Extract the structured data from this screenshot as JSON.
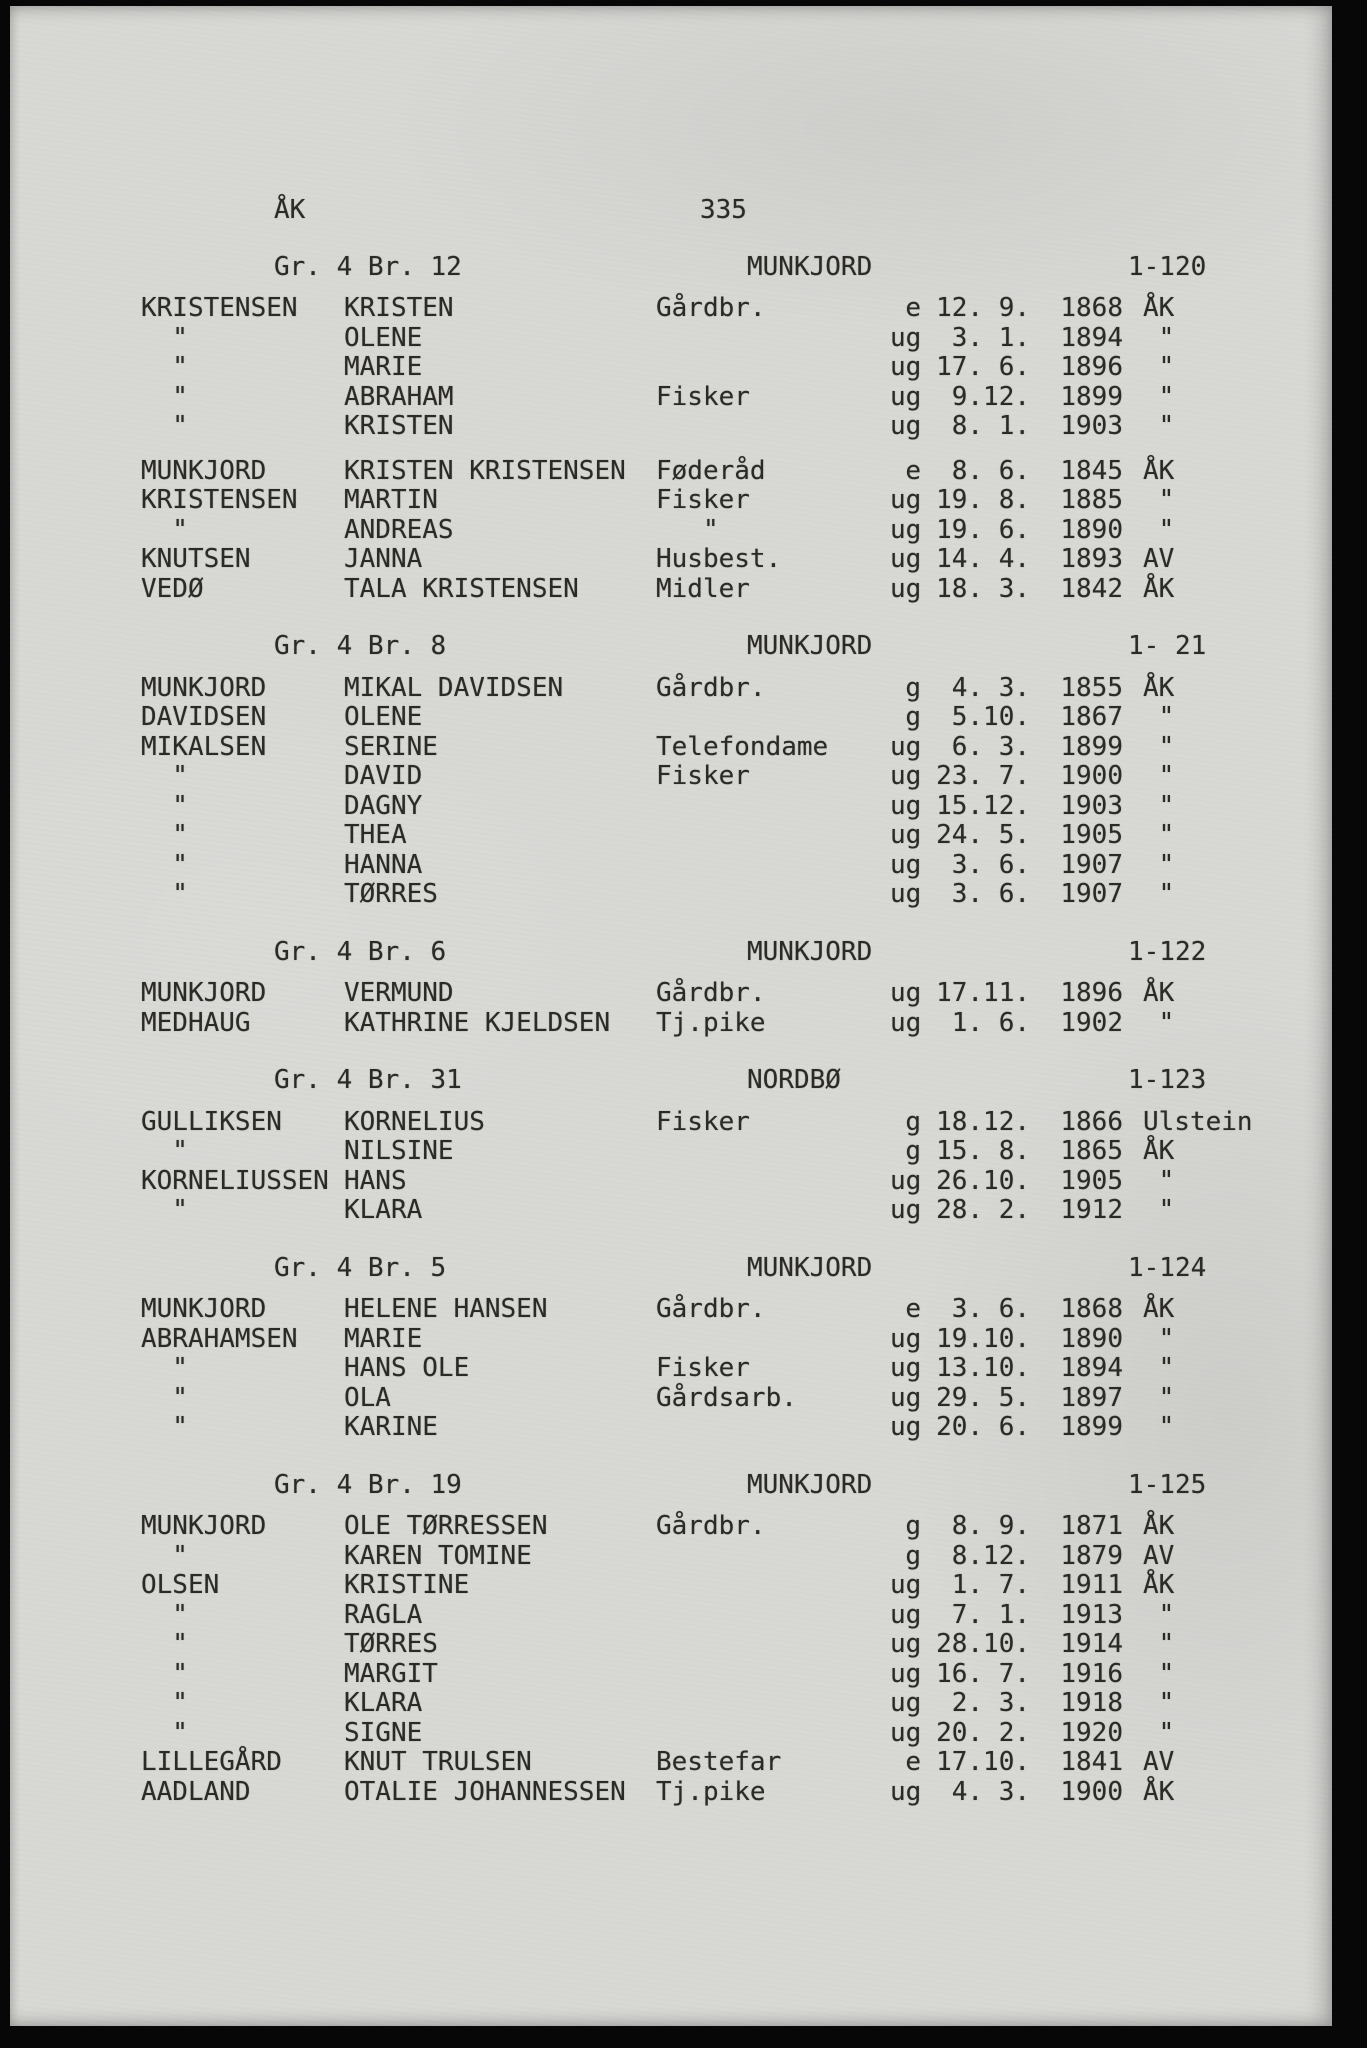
{
  "page": {
    "region_code": "ÅK",
    "page_number": "335"
  },
  "sections": [
    {
      "farm_unit": "Gr. 4 Br. 12",
      "place": "MUNKJORD",
      "serial": "1-120",
      "groups": [
        {
          "rows": [
            {
              "surname": "KRISTENSEN",
              "given": "KRISTEN",
              "occupation": "Gårdbr.",
              "status": "e",
              "date": "12. 9.",
              "year": "1868",
              "residence": "ÅK"
            },
            {
              "surname": "  \"",
              "given": "OLENE",
              "occupation": "",
              "status": "ug",
              "date": " 3. 1.",
              "year": "1894",
              "residence": " \""
            },
            {
              "surname": "  \"",
              "given": "MARIE",
              "occupation": "",
              "status": "ug",
              "date": "17. 6.",
              "year": "1896",
              "residence": " \""
            },
            {
              "surname": "  \"",
              "given": "ABRAHAM",
              "occupation": "Fisker",
              "status": "ug",
              "date": " 9.12.",
              "year": "1899",
              "residence": " \""
            },
            {
              "surname": "  \"",
              "given": "KRISTEN",
              "occupation": "",
              "status": "ug",
              "date": " 8. 1.",
              "year": "1903",
              "residence": " \""
            }
          ]
        },
        {
          "rows": [
            {
              "surname": "MUNKJORD",
              "given": "KRISTEN KRISTENSEN",
              "occupation": "Føderåd",
              "status": "e",
              "date": " 8. 6.",
              "year": "1845",
              "residence": "ÅK"
            },
            {
              "surname": "KRISTENSEN",
              "given": "MARTIN",
              "occupation": "Fisker",
              "status": "ug",
              "date": "19. 8.",
              "year": "1885",
              "residence": " \""
            },
            {
              "surname": "  \"",
              "given": "ANDREAS",
              "occupation": "   \"",
              "status": "ug",
              "date": "19. 6.",
              "year": "1890",
              "residence": " \""
            },
            {
              "surname": "KNUTSEN",
              "given": "JANNA",
              "occupation": "Husbest.",
              "status": "ug",
              "date": "14. 4.",
              "year": "1893",
              "residence": "AV"
            },
            {
              "surname": "VEDØ",
              "given": "TALA KRISTENSEN",
              "occupation": "Midler",
              "status": "ug",
              "date": "18. 3.",
              "year": "1842",
              "residence": "ÅK"
            }
          ]
        }
      ]
    },
    {
      "farm_unit": "Gr. 4 Br. 8",
      "place": "MUNKJORD",
      "serial": "1- 21",
      "groups": [
        {
          "rows": [
            {
              "surname": "MUNKJORD",
              "given": "MIKAL DAVIDSEN",
              "occupation": "Gårdbr.",
              "status": "g",
              "date": " 4. 3.",
              "year": "1855",
              "residence": "ÅK"
            },
            {
              "surname": "DAVIDSEN",
              "given": "OLENE",
              "occupation": "",
              "status": "g",
              "date": " 5.10.",
              "year": "1867",
              "residence": " \""
            },
            {
              "surname": "MIKALSEN",
              "given": "SERINE",
              "occupation": "Telefondame",
              "status": "ug",
              "date": " 6. 3.",
              "year": "1899",
              "residence": " \""
            },
            {
              "surname": "  \"",
              "given": "DAVID",
              "occupation": "Fisker",
              "status": "ug",
              "date": "23. 7.",
              "year": "1900",
              "residence": " \""
            },
            {
              "surname": "  \"",
              "given": "DAGNY",
              "occupation": "",
              "status": "ug",
              "date": "15.12.",
              "year": "1903",
              "residence": " \""
            },
            {
              "surname": "  \"",
              "given": "THEA",
              "occupation": "",
              "status": "ug",
              "date": "24. 5.",
              "year": "1905",
              "residence": " \""
            },
            {
              "surname": "  \"",
              "given": "HANNA",
              "occupation": "",
              "status": "ug",
              "date": " 3. 6.",
              "year": "1907",
              "residence": " \""
            },
            {
              "surname": "  \"",
              "given": "TØRRES",
              "occupation": "",
              "status": "ug",
              "date": " 3. 6.",
              "year": "1907",
              "residence": " \""
            }
          ]
        }
      ]
    },
    {
      "farm_unit": "Gr. 4 Br. 6",
      "place": "MUNKJORD",
      "serial": "1-122",
      "groups": [
        {
          "rows": [
            {
              "surname": "MUNKJORD",
              "given": "VERMUND",
              "occupation": "Gårdbr.",
              "status": "ug",
              "date": "17.11.",
              "year": "1896",
              "residence": "ÅK"
            },
            {
              "surname": "MEDHAUG",
              "given": "KATHRINE KJELDSEN",
              "occupation": "Tj.pike",
              "status": "ug",
              "date": " 1. 6.",
              "year": "1902",
              "residence": " \""
            }
          ]
        }
      ]
    },
    {
      "farm_unit": "Gr. 4 Br. 31",
      "place": "NORDBØ",
      "serial": "1-123",
      "groups": [
        {
          "rows": [
            {
              "surname": "GULLIKSEN",
              "given": "KORNELIUS",
              "occupation": "Fisker",
              "status": "g",
              "date": "18.12.",
              "year": "1866",
              "residence": "Ulstein"
            },
            {
              "surname": "  \"",
              "given": "NILSINE",
              "occupation": "",
              "status": "g",
              "date": "15. 8.",
              "year": "1865",
              "residence": "ÅK"
            },
            {
              "surname": "KORNELIUSSEN",
              "given": "HANS",
              "occupation": "",
              "status": "ug",
              "date": "26.10.",
              "year": "1905",
              "residence": " \""
            },
            {
              "surname": "  \"",
              "given": "KLARA",
              "occupation": "",
              "status": "ug",
              "date": "28. 2.",
              "year": "1912",
              "residence": " \""
            }
          ]
        }
      ]
    },
    {
      "farm_unit": "Gr. 4 Br. 5",
      "place": "MUNKJORD",
      "serial": "1-124",
      "groups": [
        {
          "rows": [
            {
              "surname": "MUNKJORD",
              "given": "HELENE HANSEN",
              "occupation": "Gårdbr.",
              "status": "e",
              "date": " 3. 6.",
              "year": "1868",
              "residence": "ÅK"
            },
            {
              "surname": "ABRAHAMSEN",
              "given": "MARIE",
              "occupation": "",
              "status": "ug",
              "date": "19.10.",
              "year": "1890",
              "residence": " \""
            },
            {
              "surname": "  \"",
              "given": "HANS OLE",
              "occupation": "Fisker",
              "status": "ug",
              "date": "13.10.",
              "year": "1894",
              "residence": " \""
            },
            {
              "surname": "  \"",
              "given": "OLA",
              "occupation": "Gårdsarb.",
              "status": "ug",
              "date": "29. 5.",
              "year": "1897",
              "residence": " \""
            },
            {
              "surname": "  \"",
              "given": "KARINE",
              "occupation": "",
              "status": "ug",
              "date": "20. 6.",
              "year": "1899",
              "residence": " \""
            }
          ]
        }
      ]
    },
    {
      "farm_unit": "Gr. 4 Br. 19",
      "place": "MUNKJORD",
      "serial": "1-125",
      "groups": [
        {
          "rows": [
            {
              "surname": "MUNKJORD",
              "given": "OLE TØRRESSEN",
              "occupation": "Gårdbr.",
              "status": "g",
              "date": " 8. 9.",
              "year": "1871",
              "residence": "ÅK"
            },
            {
              "surname": "  \"",
              "given": "KAREN TOMINE",
              "occupation": "",
              "status": "g",
              "date": " 8.12.",
              "year": "1879",
              "residence": "AV"
            },
            {
              "surname": "OLSEN",
              "given": "KRISTINE",
              "occupation": "",
              "status": "ug",
              "date": " 1. 7.",
              "year": "1911",
              "residence": "ÅK"
            },
            {
              "surname": "  \"",
              "given": "RAGLA",
              "occupation": "",
              "status": "ug",
              "date": " 7. 1.",
              "year": "1913",
              "residence": " \""
            },
            {
              "surname": "  \"",
              "given": "TØRRES",
              "occupation": "",
              "status": "ug",
              "date": "28.10.",
              "year": "1914",
              "residence": " \""
            },
            {
              "surname": "  \"",
              "given": "MARGIT",
              "occupation": "",
              "status": "ug",
              "date": "16. 7.",
              "year": "1916",
              "residence": " \""
            },
            {
              "surname": "  \"",
              "given": "KLARA",
              "occupation": "",
              "status": "ug",
              "date": " 2. 3.",
              "year": "1918",
              "residence": " \""
            },
            {
              "surname": "  \"",
              "given": "SIGNE",
              "occupation": "",
              "status": "ug",
              "date": "20. 2.",
              "year": "1920",
              "residence": " \""
            },
            {
              "surname": "LILLEGÅRD",
              "given": "KNUT TRULSEN",
              "occupation": "Bestefar",
              "status": "e",
              "date": "17.10.",
              "year": "1841",
              "residence": "AV"
            },
            {
              "surname": "AADLAND",
              "given": "OTALIE JOHANNESSEN",
              "occupation": "Tj.pike",
              "status": "ug",
              "date": " 4. 3.",
              "year": "1900",
              "residence": "ÅK"
            }
          ]
        }
      ]
    }
  ]
}
